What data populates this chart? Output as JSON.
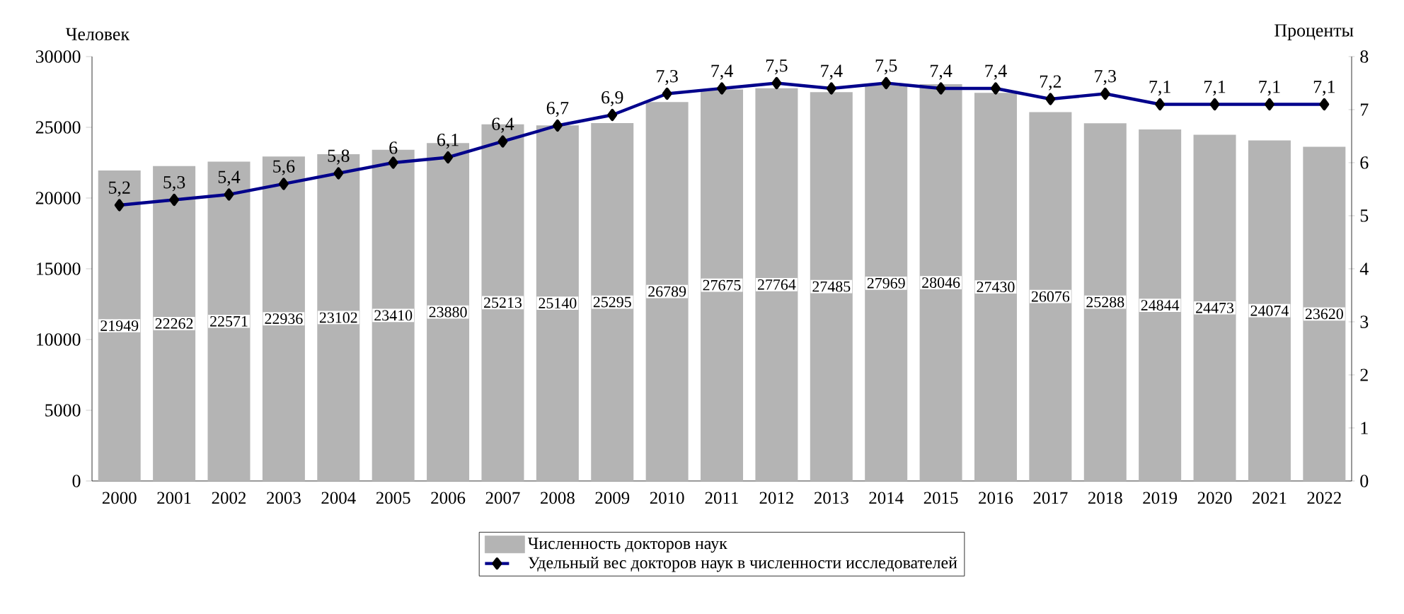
{
  "chart_data": {
    "type": "bar",
    "ylabel": "Человек",
    "y2label": "Проценты",
    "categories": [
      "2000",
      "2001",
      "2002",
      "2003",
      "2004",
      "2005",
      "2006",
      "2007",
      "2008",
      "2009",
      "2010",
      "2011",
      "2012",
      "2013",
      "2014",
      "2015",
      "2016",
      "2017",
      "2018",
      "2019",
      "2020",
      "2021",
      "2022"
    ],
    "series": [
      {
        "name": "Численность докторов наук",
        "color": "#b4b4b4",
        "values": [
          21949,
          22262,
          22571,
          22936,
          23102,
          23410,
          23880,
          25213,
          25140,
          25295,
          26789,
          27675,
          27764,
          27485,
          27969,
          28046,
          27430,
          26076,
          25288,
          24844,
          24473,
          24074,
          23620
        ]
      },
      {
        "name": "Удельный вес докторов наук в численности исследователей",
        "type": "line",
        "axis": "y2",
        "color": "#00008b",
        "marker": "diamond",
        "values": [
          5.2,
          5.3,
          5.4,
          5.6,
          5.8,
          6,
          6.1,
          6.4,
          6.7,
          6.9,
          7.3,
          7.4,
          7.5,
          7.4,
          7.5,
          7.4,
          7.4,
          7.2,
          7.3,
          7.1,
          7.1,
          7.1,
          7.1
        ],
        "value_labels": [
          "5,2",
          "5,3",
          "5,4",
          "5,6",
          "5,8",
          "6",
          "6,1",
          "6,4",
          "6,7",
          "6,9",
          "7,3",
          "7,4",
          "7,5",
          "7,4",
          "7,5",
          "7,4",
          "7,4",
          "7,2",
          "7,3",
          "7,1",
          "7,1",
          "7,1",
          "7,1"
        ]
      }
    ],
    "ylim": [
      0,
      30000
    ],
    "yticks": [
      0,
      5000,
      10000,
      15000,
      20000,
      25000,
      30000
    ],
    "y2lim": [
      0,
      8
    ],
    "y2ticks": [
      0,
      1,
      2,
      3,
      4,
      5,
      6,
      7,
      8
    ],
    "data_labels": true,
    "legend": "bottom"
  }
}
